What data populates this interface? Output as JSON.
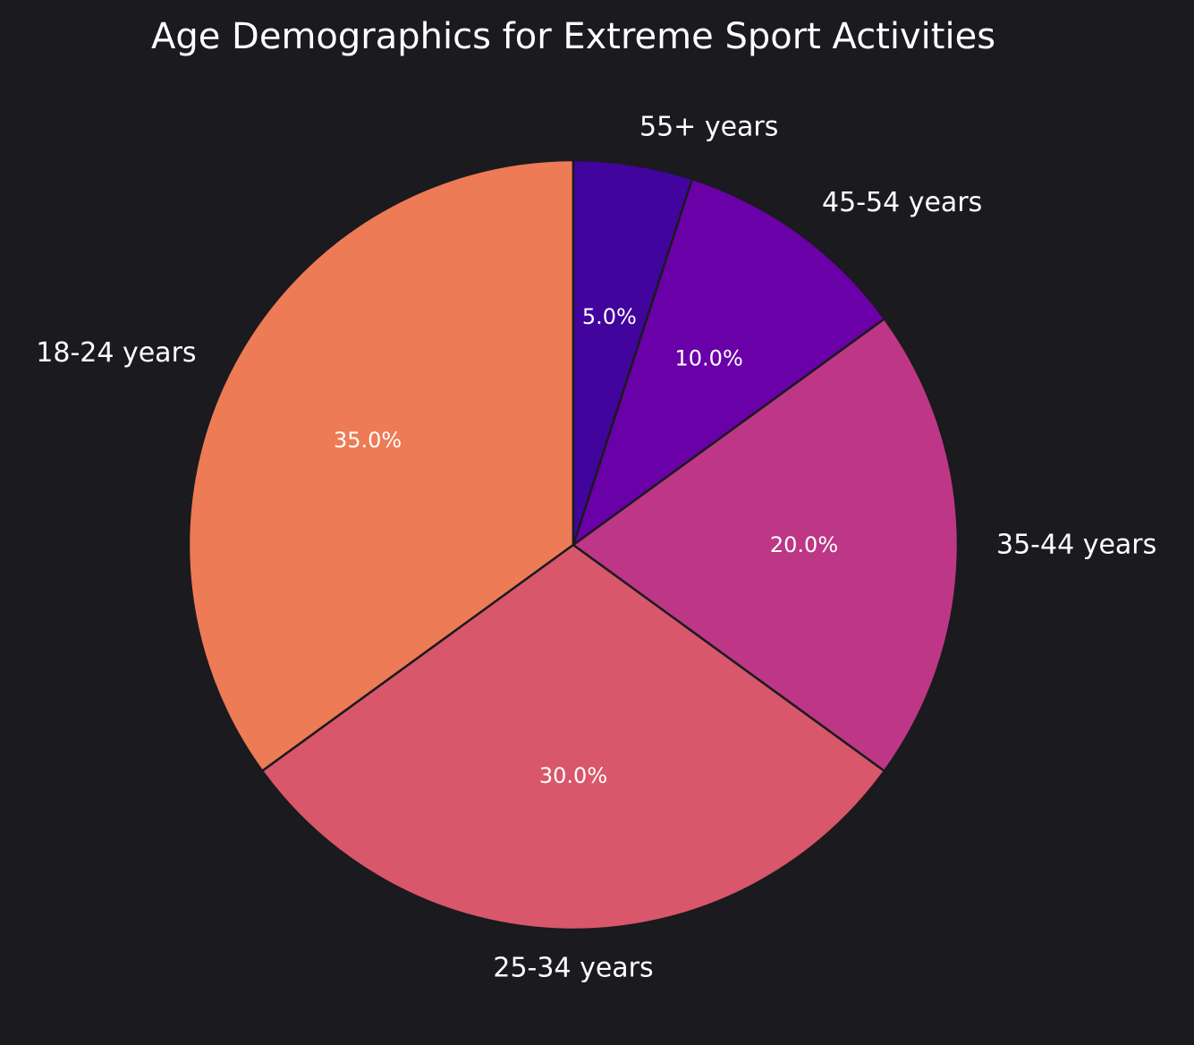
{
  "chart_data": {
    "type": "pie",
    "title": "Age Demographics for Extreme Sport Activities",
    "categories": [
      "18-24 years",
      "25-34 years",
      "35-44 years",
      "45-54 years",
      "55+ years"
    ],
    "values": [
      35,
      30,
      20,
      10,
      5
    ],
    "percent_labels": [
      "35.0%",
      "30.0%",
      "20.0%",
      "10.0%",
      "5.0%"
    ],
    "colors": [
      "#ed7b55",
      "#d8576b",
      "#bd3786",
      "#6a00a8",
      "#41049d"
    ],
    "start_angle_deg": 90,
    "direction": "counterclockwise",
    "edge_color": "#1b1a1f",
    "background": "#1b1a1f",
    "legend": "none"
  }
}
